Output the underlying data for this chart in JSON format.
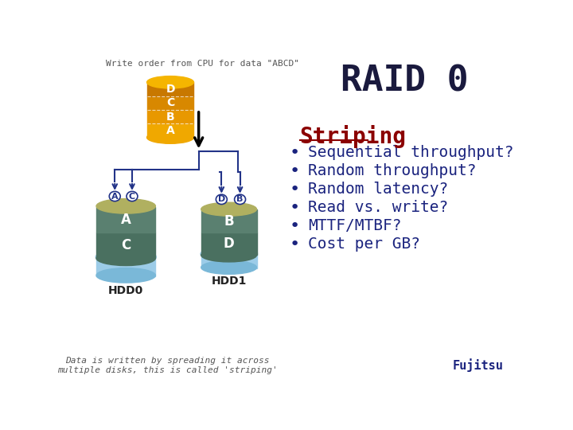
{
  "title": "RAID 0",
  "title_color": "#1a1a3e",
  "title_fontsize": 32,
  "section_title": "Striping",
  "section_title_color": "#8b0000",
  "section_title_fontsize": 20,
  "bullet_items": [
    "Sequential throughput?",
    "Random throughput?",
    "Random latency?",
    "Read vs. write?",
    "MTTF/MTBF?",
    "Cost per GB?"
  ],
  "bullet_color": "#1a237e",
  "bullet_fontsize": 14,
  "top_note": "Write order from CPU for data \"ABCD\"",
  "bottom_note": "Data is written by spreading it across\nmultiple disks, this is called 'striping'",
  "hdd0_label": "HDD0",
  "hdd1_label": "HDD1",
  "fujitsu_label": "Fujitsu",
  "background_color": "#ffffff",
  "note_color": "#555555",
  "note_fontsize": 8,
  "hdd_label_fontsize": 9,
  "fujitsu_fontsize": 11,
  "src_orange_top": "#f5b800",
  "src_orange_mid": "#e8a000",
  "src_orange_bot": "#d08000",
  "hdd_olive_top": "#b0b060",
  "hdd_green_body": "#5a7a5a",
  "hdd_blue_body": "#7ab8d8",
  "hdd_blue_bottom": "#a0cce8",
  "arrow_color": "#223388",
  "line_color": "#223388"
}
